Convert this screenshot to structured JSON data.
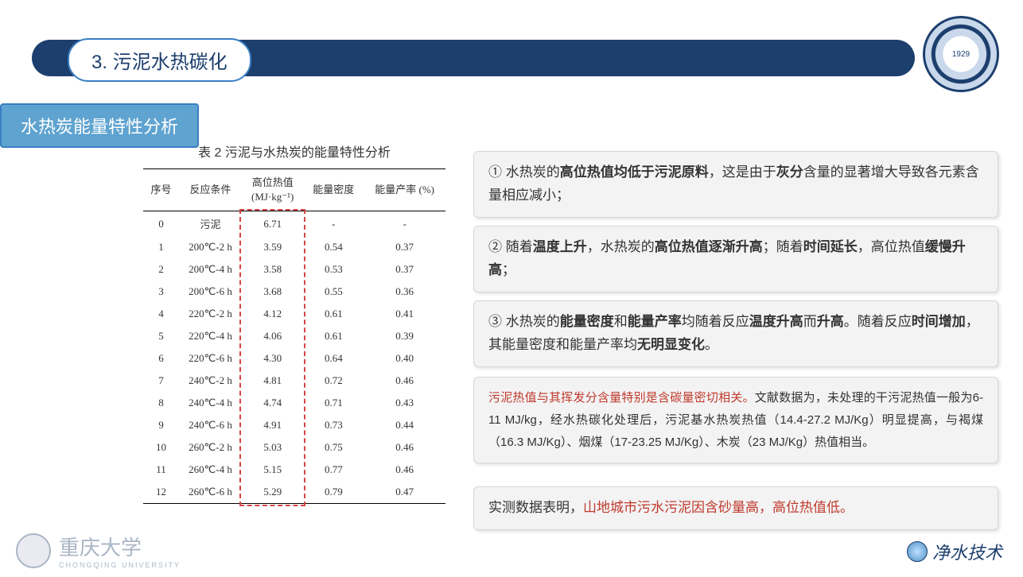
{
  "header": {
    "section_title": "3. 污泥水热碳化",
    "subtitle_tag": "水热炭能量特性分析",
    "logo_text": "1929"
  },
  "table": {
    "caption": "表 2  污泥与水热炭的能量特性分析",
    "columns": [
      "序号",
      "反应条件",
      "高位热值\n(MJ·kg⁻¹)",
      "能量密度",
      "能量产率 (%)"
    ],
    "highlight_column_index": 2,
    "highlight_border_color": "#d64545",
    "rows": [
      [
        "0",
        "污泥",
        "6.71",
        "-",
        "-"
      ],
      [
        "1",
        "200℃-2 h",
        "3.59",
        "0.54",
        "0.37"
      ],
      [
        "2",
        "200℃-4 h",
        "3.58",
        "0.53",
        "0.37"
      ],
      [
        "3",
        "200℃-6 h",
        "3.68",
        "0.55",
        "0.36"
      ],
      [
        "4",
        "220℃-2 h",
        "4.12",
        "0.61",
        "0.41"
      ],
      [
        "5",
        "220℃-4 h",
        "4.06",
        "0.61",
        "0.39"
      ],
      [
        "6",
        "220℃-6 h",
        "4.30",
        "0.64",
        "0.40"
      ],
      [
        "7",
        "240℃-2 h",
        "4.81",
        "0.72",
        "0.46"
      ],
      [
        "8",
        "240℃-4 h",
        "4.74",
        "0.71",
        "0.43"
      ],
      [
        "9",
        "240℃-6 h",
        "4.91",
        "0.73",
        "0.44"
      ],
      [
        "10",
        "260℃-2 h",
        "5.03",
        "0.75",
        "0.46"
      ],
      [
        "11",
        "260℃-4 h",
        "5.15",
        "0.77",
        "0.46"
      ],
      [
        "12",
        "260℃-6 h",
        "5.29",
        "0.79",
        "0.47"
      ]
    ]
  },
  "callouts": {
    "c1_html": "① 水热炭的<b>高位热值均低于污泥原料</b>，这是由于<b>灰分</b>含量的显著增大导致各元素含量相应减小；",
    "c2_html": "② 随着<b>温度上升</b>，水热炭的<b>高位热值逐渐升高</b>；随着<b>时间延长</b>，高位热值<b>缓慢升高</b>；",
    "c3_html": "③ 水热炭的<b>能量密度</b>和<b>能量产率</b>均随着反应<b>温度升高</b>而<b>升高</b>。随着反应<b>时间增加</b>，其能量密度和能量产率均<b>无明显变化</b>。",
    "c4_html": "<span class='red'>污泥热值与其挥发分含量特别是含碳量密切相关。</span>文献数据为，未处理的干污泥热值一般为6-11 MJ/kg，经水热碳化处理后，污泥基水热炭热值（14.4-27.2 MJ/Kg）明显提高，与褐煤（16.3 MJ/Kg）、烟煤（17-23.25 MJ/Kg）、木炭（23 MJ/Kg）热值相当。",
    "c5_html": "实测数据表明，<span class='red'>山地城市污水污泥因含砂量高，高位热值低。</span>"
  },
  "footer": {
    "univ_name": "重庆大学",
    "univ_en": "CHONGQING UNIVERSITY",
    "right_brand": "净水技术"
  },
  "colors": {
    "primary": "#1c3f6e",
    "accent": "#5fa3d0",
    "callout_bg": "#f3f3f4",
    "border": "#d6d7d9",
    "red": "#c0392b"
  }
}
